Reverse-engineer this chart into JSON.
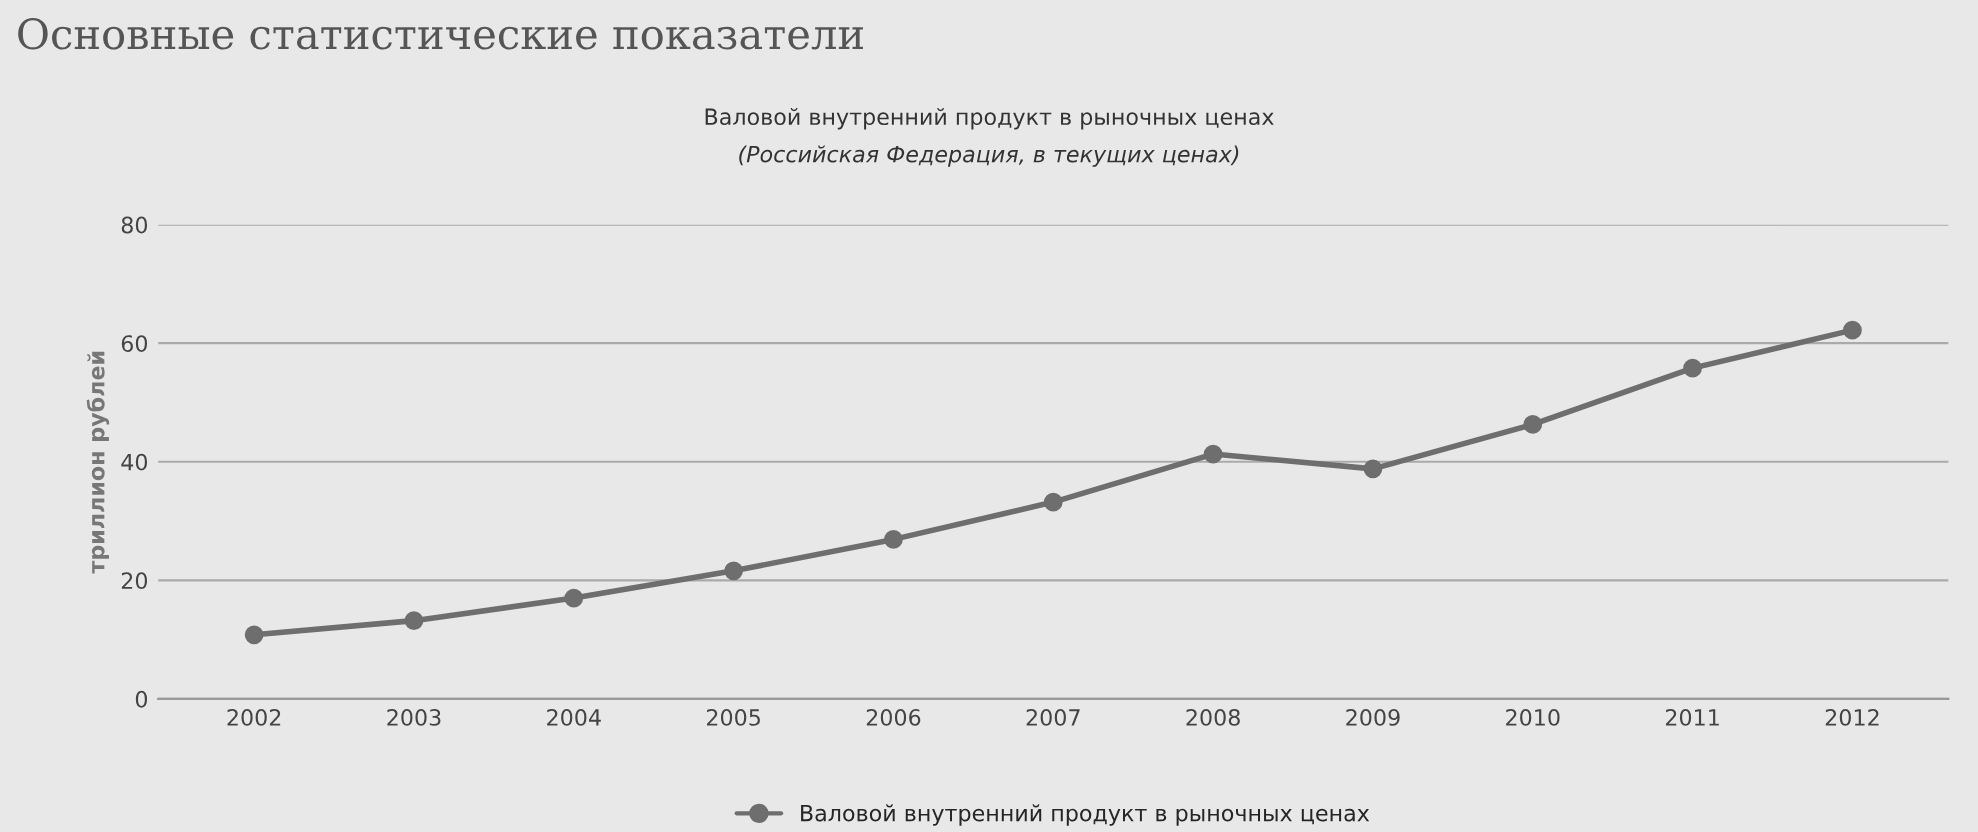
{
  "chart_data": {
    "type": "line",
    "title": "Валовой внутренний продукт в рыночных ценах",
    "subtitle": "(Российская Федерация, в текущих ценах)",
    "ylabel": "триллион рублей",
    "annotations": [
      "Основные статистические показатели"
    ],
    "categories": [
      "2002",
      "2003",
      "2004",
      "2005",
      "2006",
      "2007",
      "2008",
      "2009",
      "2010",
      "2011",
      "2012"
    ],
    "series": [
      {
        "name": "Валовой внутренний продукт в рыночных ценах",
        "color": "#6e6e6e",
        "values": [
          10.8,
          13.2,
          17.0,
          21.6,
          26.9,
          33.2,
          41.3,
          38.8,
          46.3,
          55.8,
          62.2
        ]
      }
    ],
    "ylim": [
      0,
      80
    ],
    "yticks": [
      0,
      20,
      40,
      60,
      80
    ],
    "grid": "y",
    "legend": "bottom",
    "marker": "circle",
    "line_style": "solid"
  }
}
